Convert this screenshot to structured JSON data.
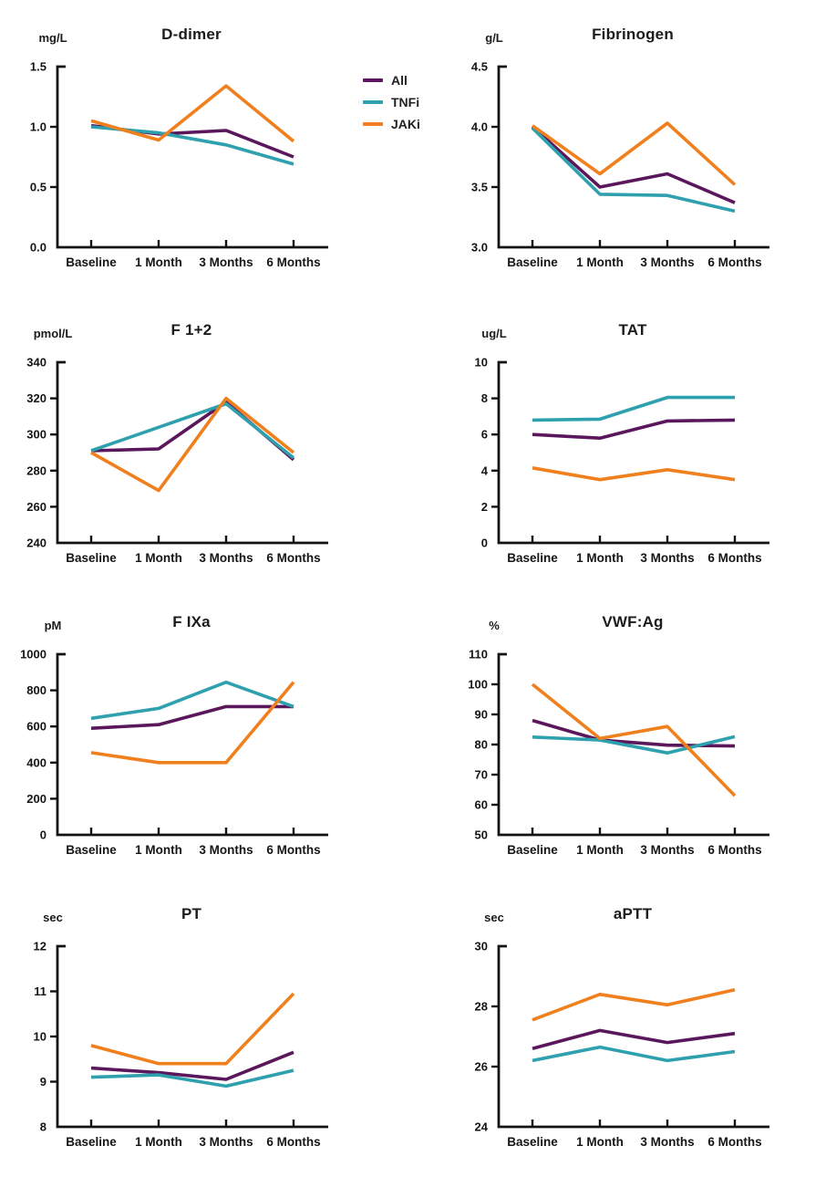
{
  "page": {
    "background": "#ffffff"
  },
  "legend": {
    "position": "right-of-first-chart",
    "items": [
      {
        "label": "All",
        "color": "#5B175C"
      },
      {
        "label": "TNFi",
        "color": "#2EA0AE"
      },
      {
        "label": "JAKi",
        "color": "#F0801E"
      }
    ]
  },
  "chart_data": [
    {
      "type": "line",
      "title": "D-dimer",
      "unit": "mg/L",
      "categories": [
        "Baseline",
        "1 Month",
        "3 Months",
        "6 Months"
      ],
      "ylim": [
        0,
        1.5
      ],
      "yticks": [
        "0.0",
        "0.5",
        "1.0",
        "1.5"
      ],
      "grid": false,
      "series": [
        {
          "name": "All",
          "values": [
            1.01,
            0.94,
            0.97,
            0.75
          ]
        },
        {
          "name": "TNFi",
          "values": [
            1.0,
            0.95,
            0.85,
            0.69
          ]
        },
        {
          "name": "JAKi",
          "values": [
            1.05,
            0.89,
            1.34,
            0.88
          ]
        }
      ]
    },
    {
      "type": "line",
      "title": "Fibrinogen",
      "unit": "g/L",
      "categories": [
        "Baseline",
        "1 Month",
        "3 Months",
        "6 Months"
      ],
      "ylim": [
        3.0,
        4.5
      ],
      "yticks": [
        "3.0",
        "3.5",
        "4.0",
        "4.5"
      ],
      "grid": false,
      "series": [
        {
          "name": "All",
          "values": [
            4.0,
            3.5,
            3.61,
            3.37
          ]
        },
        {
          "name": "TNFi",
          "values": [
            3.99,
            3.44,
            3.43,
            3.3
          ]
        },
        {
          "name": "JAKi",
          "values": [
            4.01,
            3.61,
            4.03,
            3.52
          ]
        }
      ]
    },
    {
      "type": "line",
      "title": "F 1+2",
      "unit": "pmol/L",
      "categories": [
        "Baseline",
        "1 Month",
        "3 Months",
        "6 Months"
      ],
      "ylim": [
        240,
        340
      ],
      "yticks": [
        "240",
        "260",
        "280",
        "300",
        "320",
        "340"
      ],
      "grid": false,
      "series": [
        {
          "name": "All",
          "values": [
            291,
            292,
            318,
            286
          ]
        },
        {
          "name": "TNFi",
          "values": [
            291,
            304,
            317,
            287
          ]
        },
        {
          "name": "JAKi",
          "values": [
            290,
            269,
            320,
            290
          ]
        }
      ]
    },
    {
      "type": "line",
      "title": "TAT",
      "unit": "ug/L",
      "categories": [
        "Baseline",
        "1 Month",
        "3 Months",
        "6 Months"
      ],
      "ylim": [
        0,
        10
      ],
      "yticks": [
        "0",
        "2",
        "4",
        "6",
        "8",
        "10"
      ],
      "grid": false,
      "series": [
        {
          "name": "All",
          "values": [
            6.0,
            5.8,
            6.75,
            6.8
          ]
        },
        {
          "name": "TNFi",
          "values": [
            6.8,
            6.85,
            8.05,
            8.05
          ]
        },
        {
          "name": "JAKi",
          "values": [
            4.15,
            3.5,
            4.05,
            3.5
          ]
        }
      ]
    },
    {
      "type": "line",
      "title": "F IXa",
      "unit": "pM",
      "categories": [
        "Baseline",
        "1 Month",
        "3 Months",
        "6 Months"
      ],
      "ylim": [
        0,
        1000
      ],
      "yticks": [
        "0",
        "200",
        "400",
        "600",
        "800",
        "1000"
      ],
      "grid": false,
      "series": [
        {
          "name": "All",
          "values": [
            590,
            610,
            710,
            710
          ]
        },
        {
          "name": "TNFi",
          "values": [
            645,
            700,
            845,
            710
          ]
        },
        {
          "name": "JAKi",
          "values": [
            455,
            400,
            400,
            845
          ]
        }
      ]
    },
    {
      "type": "line",
      "title": "VWF:Ag",
      "unit": "%",
      "categories": [
        "Baseline",
        "1 Month",
        "3 Months",
        "6 Months"
      ],
      "ylim": [
        50,
        110
      ],
      "yticks": [
        "50",
        "60",
        "70",
        "80",
        "90",
        "100",
        "110"
      ],
      "grid": false,
      "series": [
        {
          "name": "All",
          "values": [
            88,
            81.5,
            79.8,
            79.5
          ]
        },
        {
          "name": "TNFi",
          "values": [
            82.5,
            81.5,
            77.2,
            82.6
          ]
        },
        {
          "name": "JAKi",
          "values": [
            100,
            82,
            86,
            63
          ]
        }
      ]
    },
    {
      "type": "line",
      "title": "PT",
      "unit": "sec",
      "categories": [
        "Baseline",
        "1 Month",
        "3 Months",
        "6 Months"
      ],
      "ylim": [
        8,
        12
      ],
      "yticks": [
        "8",
        "9",
        "10",
        "11",
        "12"
      ],
      "grid": false,
      "series": [
        {
          "name": "All",
          "values": [
            9.3,
            9.2,
            9.05,
            9.65
          ]
        },
        {
          "name": "TNFi",
          "values": [
            9.1,
            9.15,
            8.9,
            9.25
          ]
        },
        {
          "name": "JAKi",
          "values": [
            9.8,
            9.4,
            9.4,
            10.95
          ]
        }
      ]
    },
    {
      "type": "line",
      "title": "aPTT",
      "unit": "sec",
      "categories": [
        "Baseline",
        "1 Month",
        "3 Months",
        "6 Months"
      ],
      "ylim": [
        24,
        30
      ],
      "yticks": [
        "24",
        "26",
        "28",
        "30"
      ],
      "grid": false,
      "series": [
        {
          "name": "All",
          "values": [
            26.6,
            27.2,
            26.8,
            27.1
          ]
        },
        {
          "name": "TNFi",
          "values": [
            26.2,
            26.65,
            26.2,
            26.5
          ]
        },
        {
          "name": "JAKi",
          "values": [
            27.55,
            28.4,
            28.05,
            28.55
          ]
        }
      ]
    }
  ]
}
